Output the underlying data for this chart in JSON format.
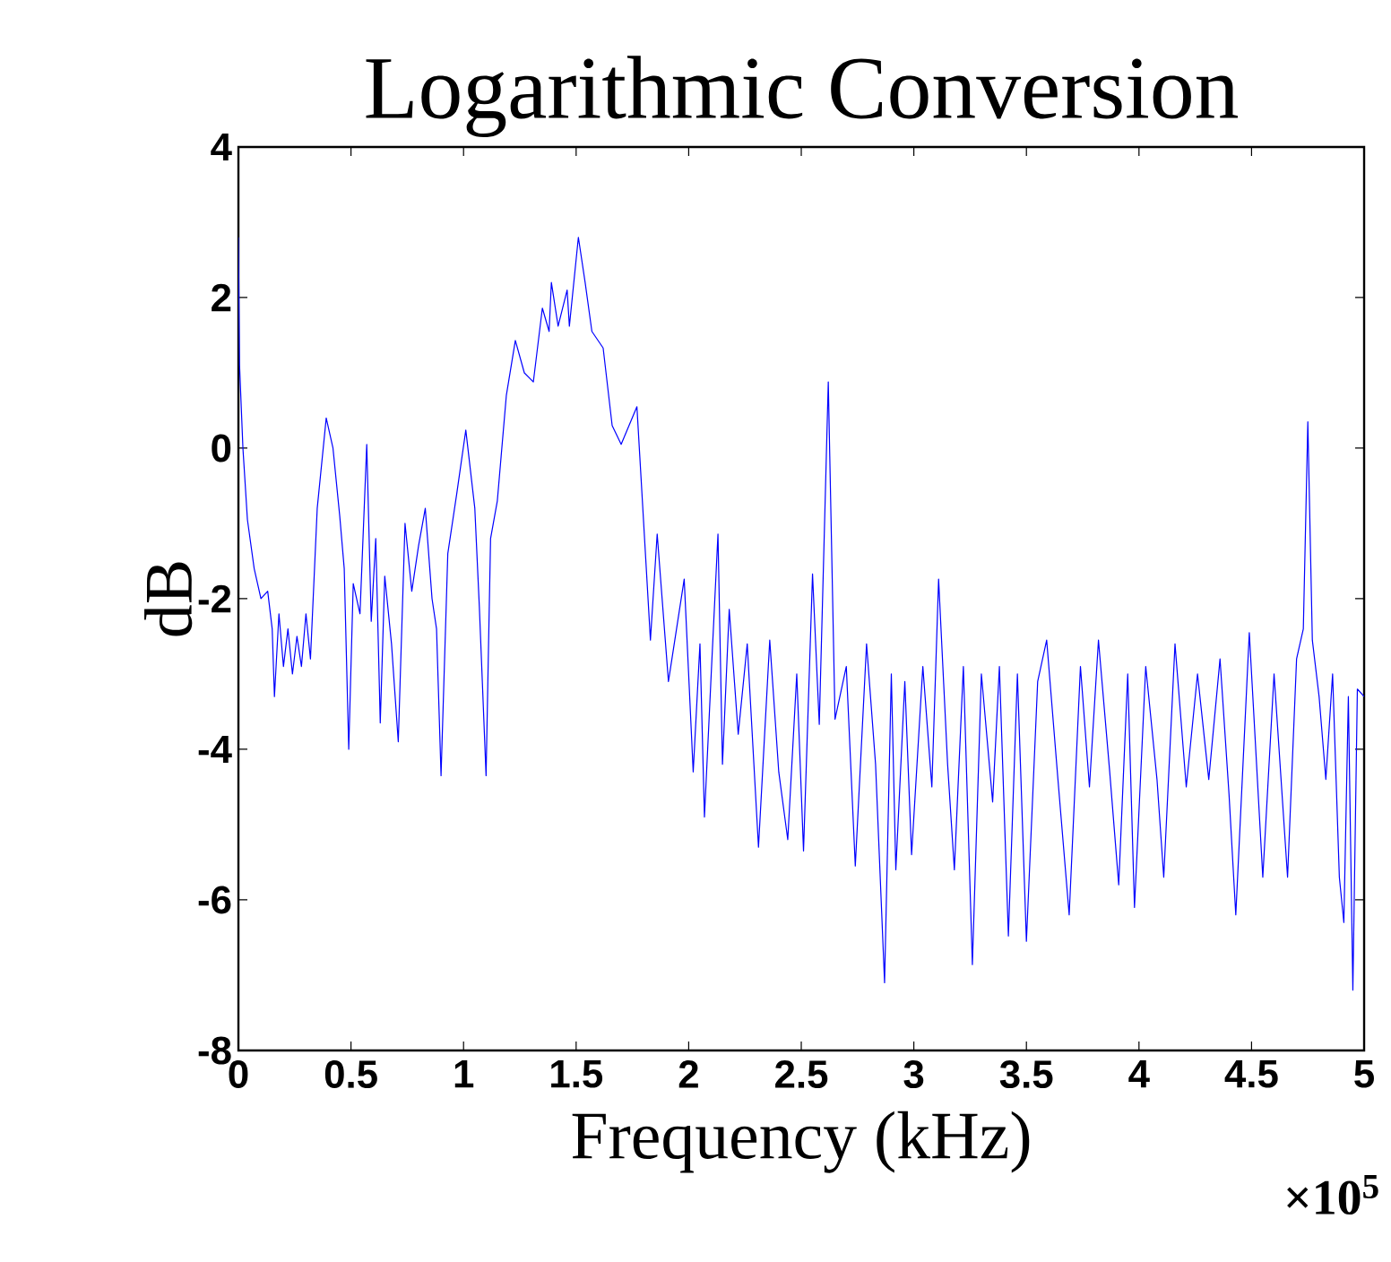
{
  "chart_data": {
    "type": "line",
    "title": "Logarithmic Conversion",
    "xlabel": "Frequency (kHz)",
    "ylabel": "dB",
    "annotations": [
      "×10$^{5}$"
    ],
    "color": "#0000ff",
    "xlim": [
      0,
      5
    ],
    "xticks": [
      0,
      0.5,
      1,
      1.5,
      2,
      2.5,
      3,
      3.5,
      4,
      4.5,
      5
    ],
    "ylim": [
      -8,
      4
    ],
    "yticks": [
      -8,
      -6,
      -4,
      -2,
      0,
      2,
      4
    ],
    "x": [
      0,
      0.005,
      0.02,
      0.04,
      0.07,
      0.1,
      0.13,
      0.15,
      0.16,
      0.18,
      0.2,
      0.22,
      0.24,
      0.26,
      0.28,
      0.3,
      0.32,
      0.35,
      0.39,
      0.42,
      0.45,
      0.47,
      0.49,
      0.51,
      0.54,
      0.57,
      0.59,
      0.61,
      0.63,
      0.65,
      0.68,
      0.71,
      0.74,
      0.77,
      0.8,
      0.83,
      0.86,
      0.88,
      0.9,
      0.93,
      0.97,
      1.01,
      1.05,
      1.07,
      1.1,
      1.12,
      1.15,
      1.19,
      1.23,
      1.27,
      1.31,
      1.35,
      1.38,
      1.39,
      1.42,
      1.46,
      1.47,
      1.51,
      1.54,
      1.57,
      1.62,
      1.66,
      1.7,
      1.77,
      1.79,
      1.83,
      1.86,
      1.91,
      1.98,
      2.02,
      2.05,
      2.07,
      2.1,
      2.13,
      2.15,
      2.18,
      2.22,
      2.26,
      2.31,
      2.36,
      2.4,
      2.44,
      2.48,
      2.51,
      2.55,
      2.58,
      2.62,
      2.65,
      2.7,
      2.74,
      2.79,
      2.83,
      2.87,
      2.9,
      2.92,
      2.96,
      2.99,
      3.04,
      3.08,
      3.11,
      3.15,
      3.18,
      3.22,
      3.26,
      3.3,
      3.35,
      3.38,
      3.42,
      3.46,
      3.5,
      3.55,
      3.59,
      3.64,
      3.69,
      3.74,
      3.78,
      3.82,
      3.87,
      3.91,
      3.95,
      3.98,
      4.03,
      4.08,
      4.11,
      4.16,
      4.21,
      4.26,
      4.31,
      4.36,
      4.4,
      4.43,
      4.49,
      4.55,
      4.6,
      4.66,
      4.7,
      4.73,
      4.75,
      4.77,
      4.8,
      4.83,
      4.86,
      4.89,
      4.91,
      4.93,
      4.95,
      4.97,
      5.0
    ],
    "values": [
      2.8,
      1.1,
      0.0,
      -0.95,
      -1.6,
      -2.0,
      -1.9,
      -2.4,
      -3.3,
      -2.2,
      -2.9,
      -2.4,
      -3.0,
      -2.5,
      -2.9,
      -2.2,
      -2.8,
      -0.8,
      0.4,
      0.0,
      -0.9,
      -1.6,
      -4.0,
      -1.8,
      -2.2,
      0.05,
      -2.3,
      -1.2,
      -3.65,
      -1.7,
      -2.6,
      -3.9,
      -1.0,
      -1.9,
      -1.3,
      -0.8,
      -2.0,
      -2.4,
      -4.35,
      -1.4,
      -0.6,
      0.24,
      -0.8,
      -2.1,
      -4.35,
      -1.2,
      -0.7,
      0.7,
      1.43,
      1.0,
      0.88,
      1.86,
      1.55,
      2.2,
      1.62,
      2.1,
      1.62,
      2.8,
      2.2,
      1.55,
      1.33,
      0.3,
      0.05,
      0.55,
      -0.48,
      -2.55,
      -1.14,
      -3.1,
      -1.74,
      -4.3,
      -2.6,
      -4.9,
      -3.0,
      -1.14,
      -4.2,
      -2.14,
      -3.8,
      -2.6,
      -5.3,
      -2.55,
      -4.3,
      -5.2,
      -3.0,
      -5.35,
      -1.67,
      -3.67,
      0.88,
      -3.6,
      -2.9,
      -5.55,
      -2.6,
      -4.2,
      -7.1,
      -3.0,
      -5.6,
      -3.1,
      -5.4,
      -2.9,
      -4.5,
      -1.74,
      -4.2,
      -5.6,
      -2.9,
      -6.86,
      -3.0,
      -4.7,
      -2.9,
      -6.48,
      -3.0,
      -6.55,
      -3.1,
      -2.55,
      -4.4,
      -6.2,
      -2.9,
      -4.5,
      -2.55,
      -4.3,
      -5.8,
      -3.0,
      -6.1,
      -2.9,
      -4.4,
      -5.7,
      -2.6,
      -4.5,
      -3.0,
      -4.4,
      -2.8,
      -4.6,
      -6.2,
      -2.45,
      -5.7,
      -3.0,
      -5.7,
      -2.8,
      -2.4,
      0.35,
      -2.55,
      -3.3,
      -4.4,
      -3.0,
      -5.7,
      -6.3,
      -3.3,
      -7.2,
      -3.2,
      -3.3
    ]
  }
}
